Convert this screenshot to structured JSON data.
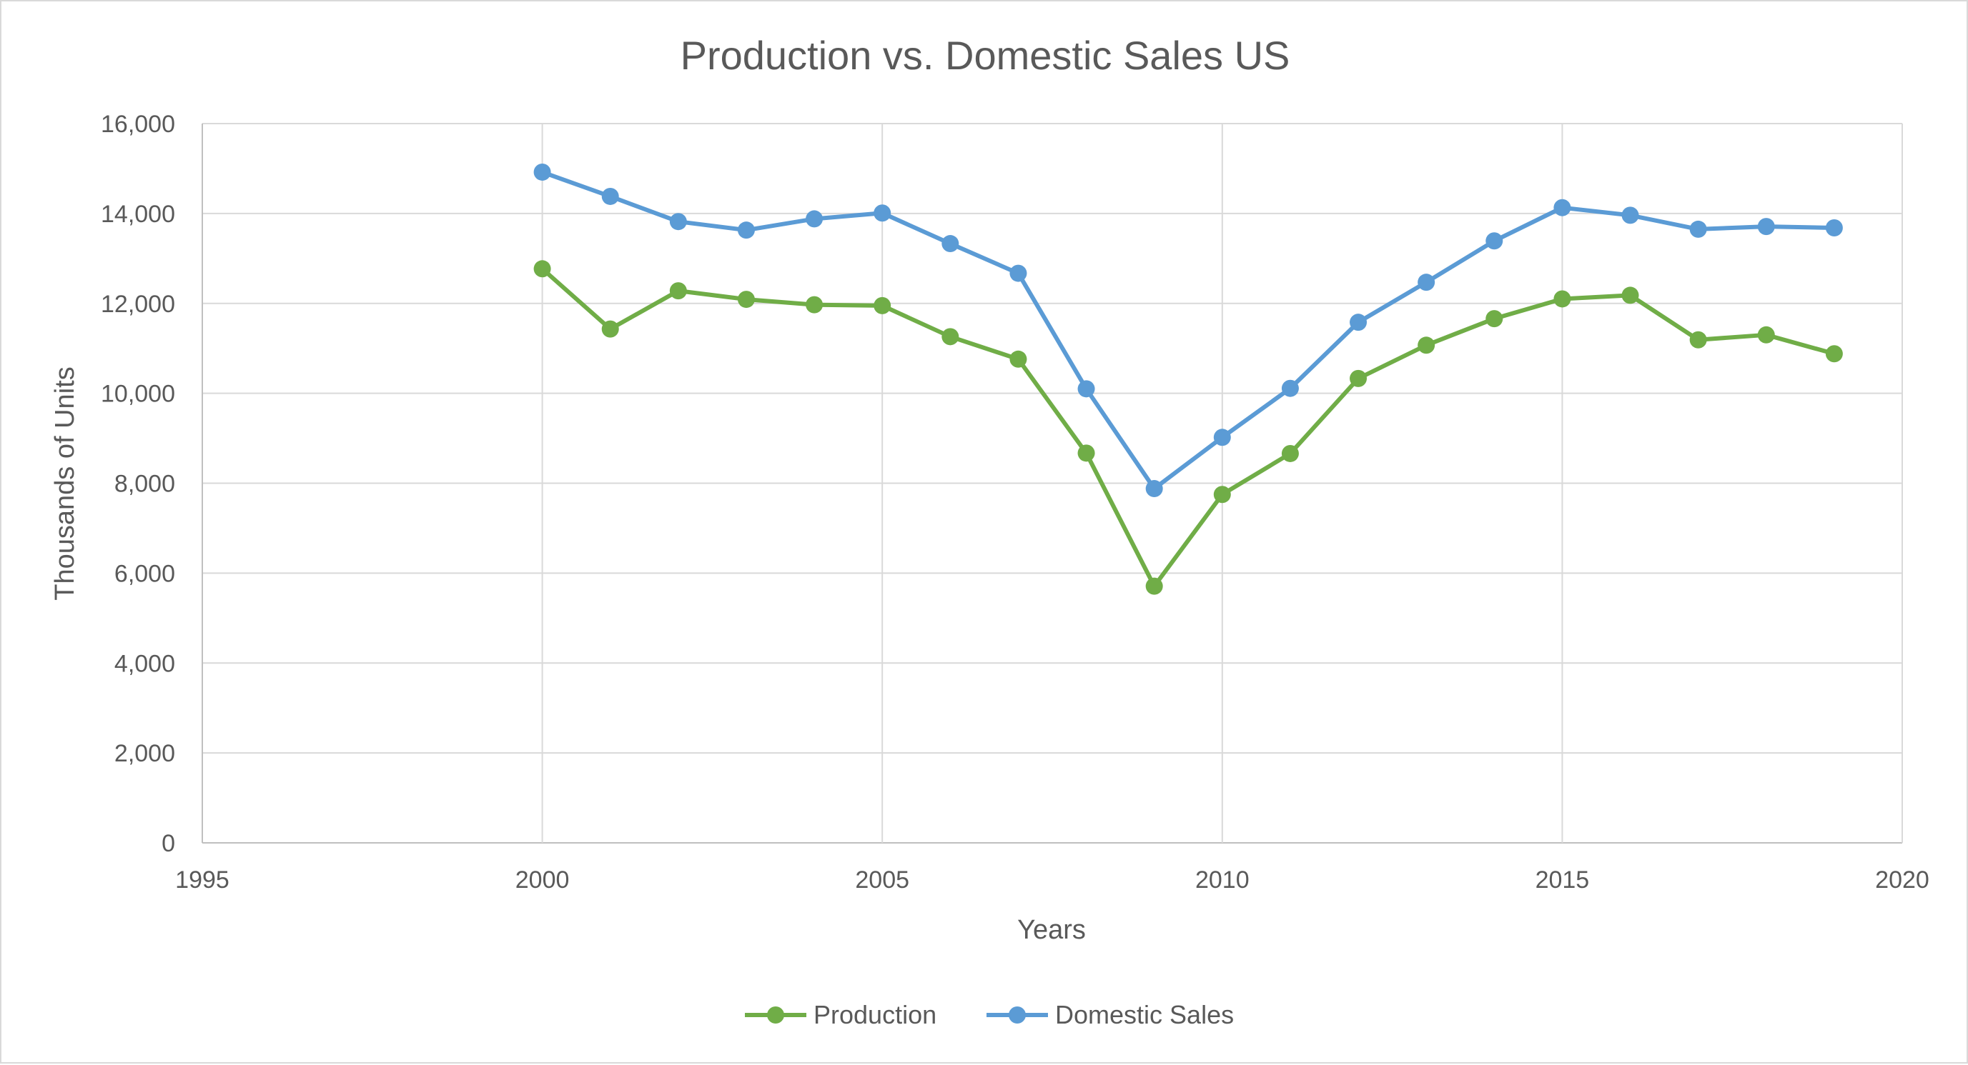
{
  "chart_data": {
    "type": "line",
    "title": "Production vs. Domestic Sales US",
    "xlabel": "Years",
    "ylabel": "Thousands of Units",
    "xlim": [
      1995,
      2020
    ],
    "ylim": [
      0,
      16000
    ],
    "x_ticks": [
      1995,
      2000,
      2005,
      2010,
      2015,
      2020
    ],
    "y_ticks": [
      0,
      2000,
      4000,
      6000,
      8000,
      10000,
      12000,
      14000,
      16000
    ],
    "x_tick_labels": [
      "1995",
      "2000",
      "2005",
      "2010",
      "2015",
      "2020"
    ],
    "y_tick_labels": [
      "0",
      "2,000",
      "4,000",
      "6,000",
      "8,000",
      "10,000",
      "12,000",
      "14,000",
      "16,000"
    ],
    "grid": true,
    "legend": "bottom",
    "x": [
      2000,
      2001,
      2002,
      2003,
      2004,
      2005,
      2006,
      2007,
      2008,
      2009,
      2010,
      2011,
      2012,
      2013,
      2014,
      2015,
      2016,
      2017,
      2018,
      2019
    ],
    "series": [
      {
        "name": "Production",
        "color": "#70ad47",
        "values": [
          12770,
          11430,
          12280,
          12090,
          11970,
          11950,
          11260,
          10760,
          8670,
          5710,
          7750,
          8660,
          10330,
          11070,
          11660,
          12100,
          12180,
          11190,
          11300,
          10880
        ]
      },
      {
        "name": "Domestic Sales",
        "color": "#5b9bd5",
        "values": [
          14920,
          14380,
          13820,
          13630,
          13880,
          14010,
          13330,
          12670,
          10100,
          7880,
          9020,
          10110,
          11580,
          12470,
          13390,
          14130,
          13960,
          13650,
          13710,
          13680
        ]
      }
    ]
  }
}
